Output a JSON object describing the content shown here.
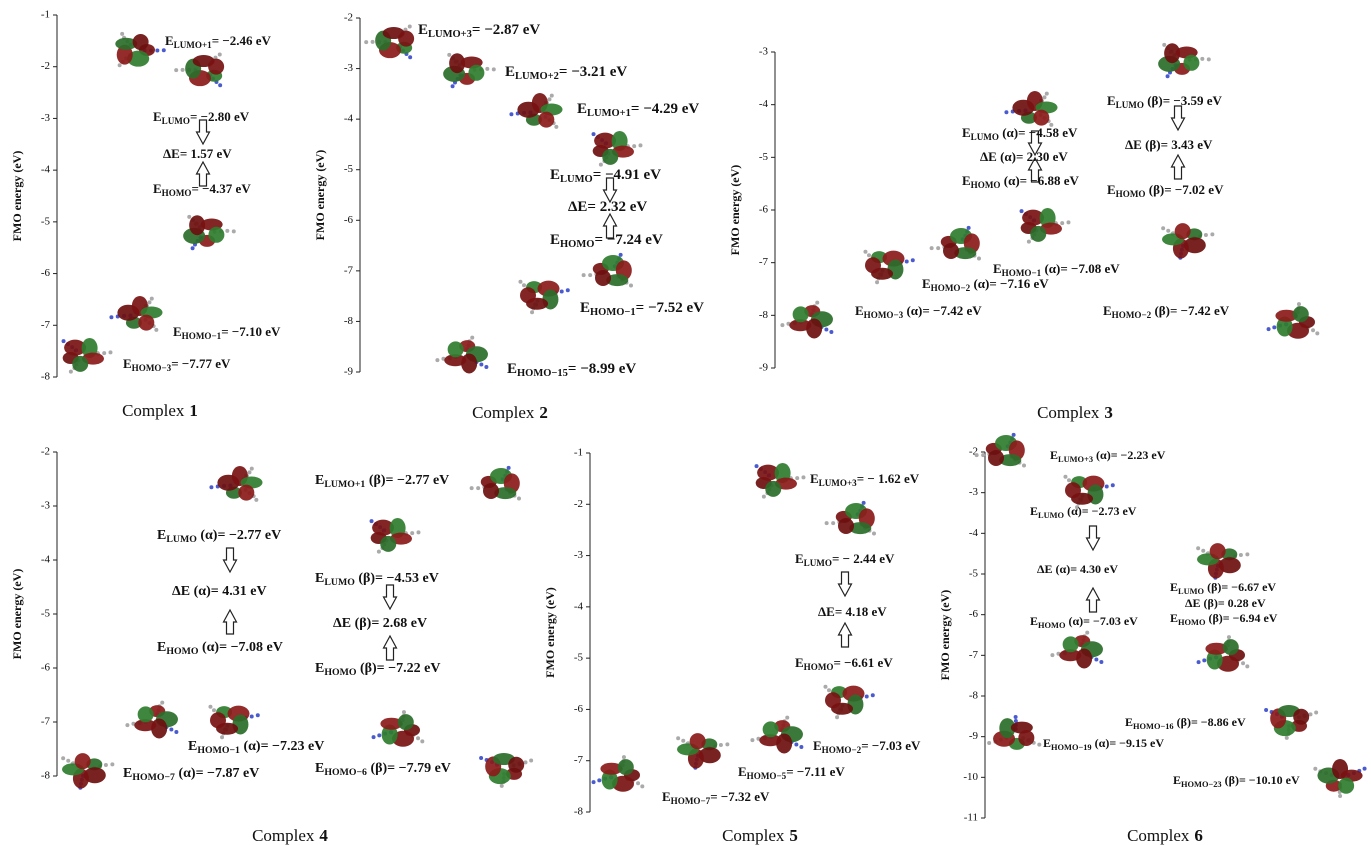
{
  "panels": [
    {
      "y_label": "FMO energy (eV)",
      "ylim": [
        -8,
        -1
      ],
      "yticks": [
        -8,
        -7,
        -6,
        -5,
        -4,
        -3,
        -2,
        -1
      ],
      "labels": [
        {
          "symbol": "E",
          "sub": "LUMO+1",
          "rest": "= −2.46 eV"
        },
        {
          "symbol": "E",
          "sub": "LUMO",
          "rest": "= −2.80 eV"
        },
        {
          "text": "ΔE= 1.57 eV"
        },
        {
          "symbol": "E",
          "sub": "HOMO",
          "rest": "= −4.37 eV"
        },
        {
          "symbol": "E",
          "sub": "HOMO−1",
          "rest": "= −7.10 eV"
        },
        {
          "symbol": "E",
          "sub": "HOMO−3",
          "rest": "= −7.77 eV"
        }
      ],
      "caption": {
        "text": "Complex",
        "number": "1"
      }
    },
    {
      "y_label": "FMO energy (eV)",
      "ylim": [
        -9,
        -2
      ],
      "yticks": [
        -9,
        -8,
        -7,
        -6,
        -5,
        -4,
        -3,
        -2
      ],
      "labels": [
        {
          "symbol": "E",
          "sub": "LUMO+3",
          "rest": "= −2.87 eV"
        },
        {
          "symbol": "E",
          "sub": "LUMO+2",
          "rest": "= −3.21 eV"
        },
        {
          "symbol": "E",
          "sub": "LUMO+1",
          "rest": "= −4.29 eV"
        },
        {
          "symbol": "E",
          "sub": "LUMO",
          "rest": "= −4.91 eV"
        },
        {
          "text": "ΔE= 2.32 eV"
        },
        {
          "symbol": "E",
          "sub": "HOMO",
          "rest": "= −7.24 eV"
        },
        {
          "symbol": "E",
          "sub": "HOMO−1",
          "rest": "= −7.52 eV"
        },
        {
          "symbol": "E",
          "sub": "HOMO−15",
          "rest": "= −8.99 eV"
        }
      ],
      "caption": {
        "text": "Complex",
        "number": "2"
      }
    },
    {
      "y_label": "FMO energy (eV)",
      "ylim": [
        -9,
        -3
      ],
      "yticks": [
        -9,
        -8,
        -7,
        -6,
        -5,
        -4,
        -3
      ],
      "labels": [
        {
          "symbol": "E",
          "sub": "LUMO",
          "rest": " (β)= −3.59 eV"
        },
        {
          "text": "ΔE (β)= 3.43 eV"
        },
        {
          "symbol": "E",
          "sub": "HOMO",
          "rest": " (β)= −7.02 eV"
        },
        {
          "symbol": "E",
          "sub": "LUMO",
          "rest": " (α)= −4.58 eV"
        },
        {
          "text": "ΔE (α)= 2.30 eV"
        },
        {
          "symbol": "E",
          "sub": "HOMO",
          "rest": " (α)= −6.88 eV"
        },
        {
          "symbol": "E",
          "sub": "HOMO−1",
          "rest": " (α)= −7.08 eV"
        },
        {
          "symbol": "E",
          "sub": "HOMO−2",
          "rest": " (α)= −7.16 eV"
        },
        {
          "symbol": "E",
          "sub": "HOMO−3",
          "rest": " (α)= −7.42 eV"
        },
        {
          "symbol": "E",
          "sub": "HOMO−2",
          "rest": " (β)= −7.42 eV"
        }
      ],
      "caption": {
        "text": "Complex",
        "number": "3"
      }
    },
    {
      "y_label": "FMO energy (eV)",
      "ylim": [
        -8,
        -2
      ],
      "yticks": [
        -8,
        -7,
        -6,
        -5,
        -4,
        -3,
        -2
      ],
      "labels": [
        {
          "symbol": "E",
          "sub": "LUMO+1",
          "rest": " (β)= −2.77 eV"
        },
        {
          "symbol": "E",
          "sub": "LUMO",
          "rest": " (α)= −2.77 eV"
        },
        {
          "text": "ΔE (α)= 4.31 eV"
        },
        {
          "symbol": "E",
          "sub": "HOMO",
          "rest": " (α)= −7.08 eV"
        },
        {
          "symbol": "E",
          "sub": "LUMO",
          "rest": " (β)= −4.53 eV"
        },
        {
          "text": "ΔE (β)= 2.68 eV"
        },
        {
          "symbol": "E",
          "sub": "HOMO",
          "rest": " (β)= −7.22 eV"
        },
        {
          "symbol": "E",
          "sub": "HOMO−1",
          "rest": " (α)= −7.23 eV"
        },
        {
          "symbol": "E",
          "sub": "HOMO−7",
          "rest": " (α)= −7.87 eV"
        },
        {
          "symbol": "E",
          "sub": "HOMO−6",
          "rest": " (β)= −7.79 eV"
        }
      ],
      "caption": {
        "text": "Complex",
        "number": "4"
      }
    },
    {
      "y_label": "FMO energy (eV)",
      "ylim": [
        -8,
        -1
      ],
      "yticks": [
        -8,
        -7,
        -6,
        -5,
        -4,
        -3,
        -2,
        -1
      ],
      "labels": [
        {
          "symbol": "E",
          "sub": "LUMO+3",
          "rest": "= − 1.62 eV"
        },
        {
          "symbol": "E",
          "sub": "LUMO",
          "rest": "= − 2.44 eV"
        },
        {
          "text": "ΔE= 4.18 eV"
        },
        {
          "symbol": "E",
          "sub": "HOMO",
          "rest": "= −6.61 eV"
        },
        {
          "symbol": "E",
          "sub": "HOMO−2",
          "rest": "= −7.03  eV"
        },
        {
          "symbol": "E",
          "sub": "HOMO−5",
          "rest": "= −7.11 eV"
        },
        {
          "symbol": "E",
          "sub": "HOMO−7",
          "rest": "= −7.32 eV"
        }
      ],
      "caption": {
        "text": "Complex",
        "number": "5"
      }
    },
    {
      "y_label": "FMO energy (eV)",
      "ylim": [
        -11,
        -2
      ],
      "yticks": [
        -11,
        -10,
        -9,
        -8,
        -7,
        -6,
        -5,
        -4,
        -3,
        -2
      ],
      "labels": [
        {
          "symbol": "E",
          "sub": "LUMO+3",
          "rest": " (α)= −2.23 eV"
        },
        {
          "symbol": "E",
          "sub": "LUMO",
          "rest": " (α)= −2.73 eV"
        },
        {
          "text": "ΔE (α)= 4.30 eV"
        },
        {
          "symbol": "E",
          "sub": "HOMO",
          "rest": " (α)= −7.03 eV"
        },
        {
          "symbol": "E",
          "sub": "LUMO",
          "rest": " (β)= −6.67 eV"
        },
        {
          "text": "ΔE (β)= 0.28 eV"
        },
        {
          "symbol": "E",
          "sub": "HOMO",
          "rest": " (β)= −6.94 eV"
        },
        {
          "symbol": "E",
          "sub": "HOMO−16",
          "rest": " (β)= −8.86 eV"
        },
        {
          "symbol": "E",
          "sub": "HOMO−19",
          "rest": " (α)= −9.15 eV"
        },
        {
          "symbol": "E",
          "sub": "HOMO−23",
          "rest": " (β)= −10.10 eV"
        }
      ],
      "caption": {
        "text": "Complex",
        "number": "6"
      }
    }
  ]
}
